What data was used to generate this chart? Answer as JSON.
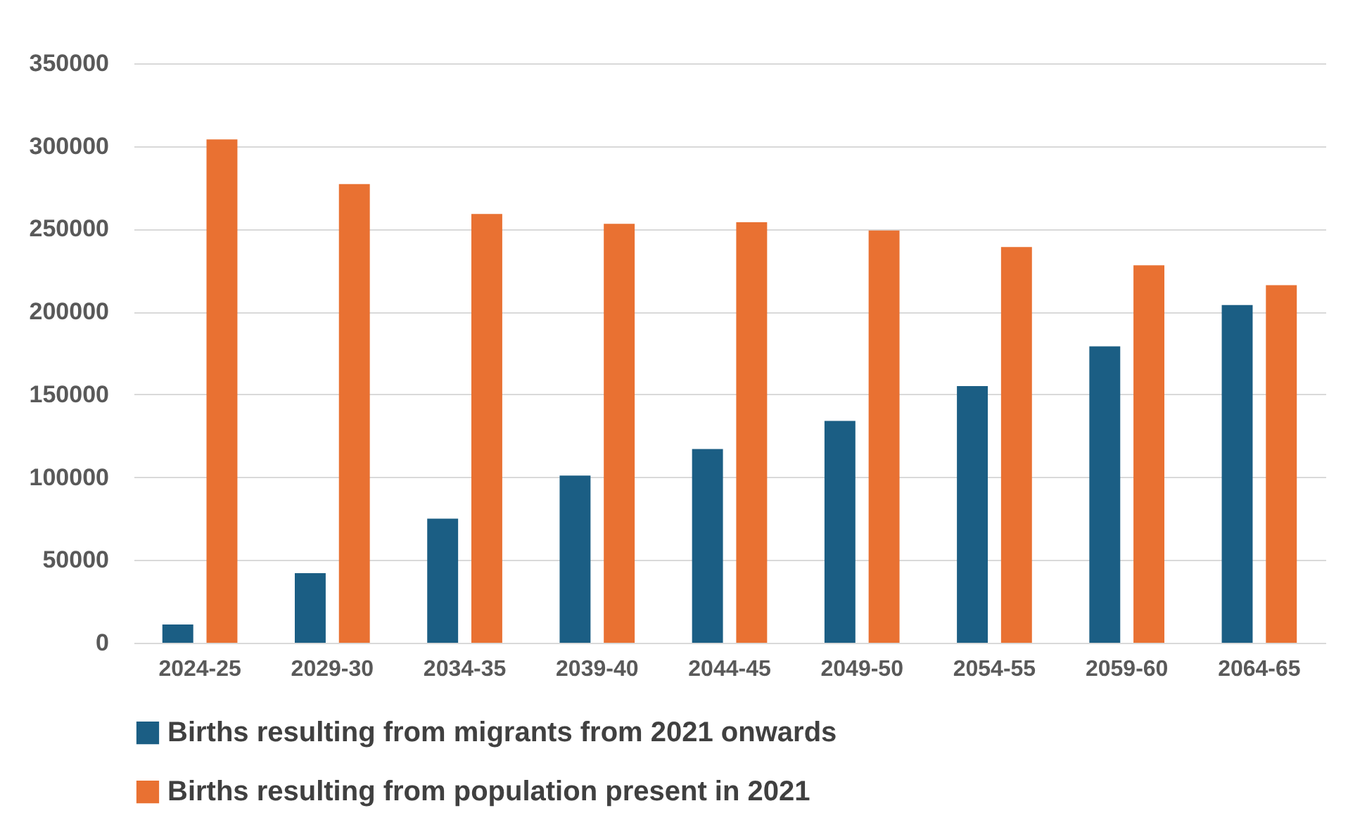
{
  "chart_data": {
    "type": "bar",
    "categories": [
      "2024-25",
      "2029-30",
      "2034-35",
      "2039-40",
      "2044-45",
      "2049-50",
      "2054-55",
      "2059-60",
      "2064-65"
    ],
    "series": [
      {
        "name": "Births resulting from migrants from 2021 onwards",
        "color": "#1b5e84",
        "values": [
          11000,
          42000,
          75000,
          101000,
          117000,
          134000,
          155000,
          179000,
          204000
        ]
      },
      {
        "name": "Births resulting from population present in 2021",
        "color": "#e97132",
        "values": [
          304000,
          277000,
          259000,
          253000,
          254000,
          249000,
          239000,
          228000,
          216000
        ]
      }
    ],
    "ylim": [
      0,
      350000
    ],
    "yticks": [
      0,
      50000,
      100000,
      150000,
      200000,
      250000,
      300000,
      350000
    ],
    "grid": "y",
    "legend": "bottom"
  }
}
